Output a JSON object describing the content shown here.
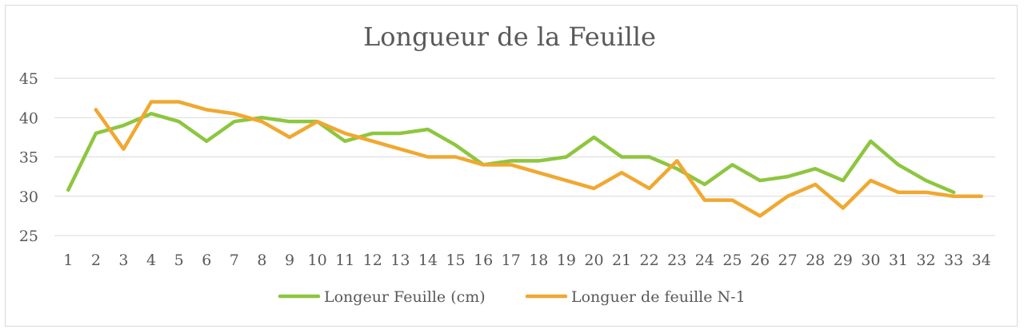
{
  "chart_data": {
    "type": "line",
    "title": "Longueur de la Feuille",
    "xlabel": "",
    "ylabel": "",
    "ylim": [
      25,
      45
    ],
    "yticks": [
      25,
      30,
      35,
      40,
      45
    ],
    "categories": [
      "1",
      "2",
      "3",
      "4",
      "5",
      "6",
      "7",
      "8",
      "9",
      "10",
      "11",
      "12",
      "13",
      "14",
      "15",
      "16",
      "17",
      "18",
      "19",
      "20",
      "21",
      "22",
      "23",
      "24",
      "25",
      "26",
      "27",
      "28",
      "29",
      "30",
      "31",
      "32",
      "33",
      "34"
    ],
    "grid": true,
    "legend": "bottom",
    "series": [
      {
        "name": "Longeur Feuille (cm)",
        "color": "#8dc63f",
        "values": [
          30.8,
          38,
          39,
          40.5,
          39.5,
          37,
          39.5,
          40,
          39.5,
          39.5,
          37,
          38,
          38,
          38.5,
          36.5,
          34,
          34.5,
          34.5,
          35,
          37.5,
          35,
          35,
          33.5,
          31.5,
          34,
          32,
          32.5,
          33.5,
          32,
          37,
          34,
          32,
          30.5,
          null
        ]
      },
      {
        "name": "Longuer de feuille N-1",
        "color": "#f0a830",
        "values": [
          null,
          41,
          36,
          42,
          42,
          41,
          40.5,
          39.5,
          37.5,
          39.5,
          38,
          37,
          36,
          35,
          35,
          34,
          34,
          33,
          32,
          31,
          33,
          31,
          34.5,
          29.5,
          29.5,
          27.5,
          30,
          31.5,
          28.5,
          32,
          30.5,
          30.5,
          30,
          30
        ]
      }
    ]
  }
}
